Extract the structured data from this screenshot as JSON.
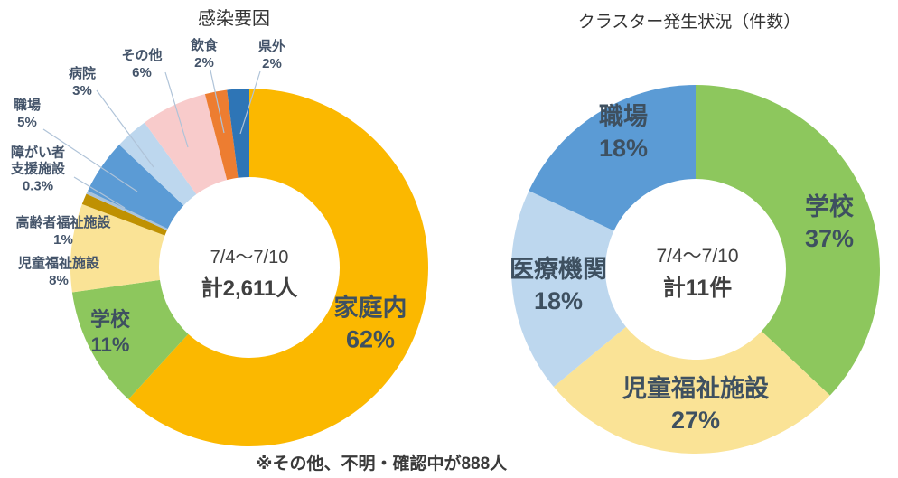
{
  "note": "※その他、不明・確認中が888人",
  "chart_data": [
    {
      "type": "pie",
      "subtype": "donut",
      "title": "感染要因",
      "center_label": {
        "line1": "7/4～7/10",
        "line2": "計2,611人"
      },
      "unit": "%",
      "start_angle_deg": 0,
      "direction": "clockwise",
      "segments": [
        {
          "label": "家庭内",
          "value": 62,
          "value_label": "62%",
          "color": "#FBB800"
        },
        {
          "label": "学校",
          "value": 11,
          "value_label": "11%",
          "color": "#8DC75D"
        },
        {
          "label": "児童福祉施設",
          "value": 8,
          "value_label": "8%",
          "color": "#FAE396"
        },
        {
          "label": "高齢者福祉施設",
          "value": 1,
          "value_label": "1%",
          "color": "#BF9102"
        },
        {
          "label": "障がい者支援施設",
          "value": 0.3,
          "value_label": "0.3%",
          "color": "#A9C3DC"
        },
        {
          "label": "職場",
          "value": 5,
          "value_label": "5%",
          "color": "#5B9BD5"
        },
        {
          "label": "病院",
          "value": 3,
          "value_label": "3%",
          "color": "#BDD7EE"
        },
        {
          "label": "その他",
          "value": 6,
          "value_label": "6%",
          "color": "#F8CBCB"
        },
        {
          "label": "飲食",
          "value": 2,
          "value_label": "2%",
          "color": "#ED7D31"
        },
        {
          "label": "県外",
          "value": 2,
          "value_label": "2%",
          "color": "#2E75B6"
        }
      ]
    },
    {
      "type": "pie",
      "subtype": "donut",
      "title": "クラスター発生状況（件数）",
      "center_label": {
        "line1": "7/4～7/10",
        "line2": "計11件"
      },
      "unit": "%",
      "start_angle_deg": 0,
      "direction": "clockwise",
      "segments": [
        {
          "label": "学校",
          "value": 37,
          "value_label": "37%",
          "color": "#8DC75D"
        },
        {
          "label": "児童福祉施設",
          "value": 27,
          "value_label": "27%",
          "color": "#FAE396"
        },
        {
          "label": "医療機関",
          "value": 18,
          "value_label": "18%",
          "color": "#BDD7EE"
        },
        {
          "label": "職場",
          "value": 18,
          "value_label": "18%",
          "color": "#5B9BD5"
        }
      ]
    }
  ]
}
